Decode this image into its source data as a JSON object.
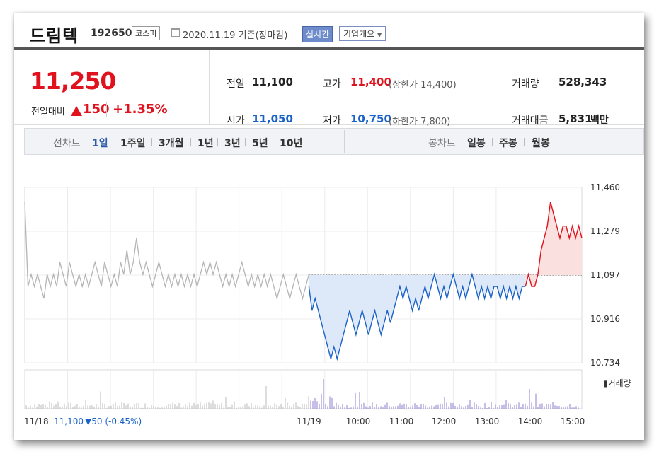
{
  "header": {
    "name": "드림텍",
    "code": "192650",
    "market": "코스피",
    "date": "2020.11.19 기준(장마감)",
    "realtime": "실시간",
    "overview": "기업개요"
  },
  "price": {
    "current": "11,250",
    "change_label": "전일대비",
    "change": "150",
    "percent": "+1.35%"
  },
  "stats": {
    "prev_label": "전일",
    "prev": "11,100",
    "high_label": "고가",
    "high": "11,400",
    "upper_limit": "(상한가 14,400)",
    "volume_label": "거래량",
    "volume": "528,343",
    "open_label": "시가",
    "open": "11,050",
    "low_label": "저가",
    "low": "10,750",
    "lower_limit": "(하한가 7,800)",
    "amount_label": "거래대금",
    "amount": "5,831",
    "amount_unit": "백만"
  },
  "tabs": {
    "line_label": "선차트",
    "line_items": [
      "1일",
      "1주일",
      "3개월",
      "1년",
      "3년",
      "5년",
      "10년"
    ],
    "candle_label": "봉차트",
    "candle_items": [
      "일봉",
      "주봉",
      "월봉"
    ]
  },
  "colors": {
    "up": "#e0121d",
    "down": "#1b62c8",
    "prev_line": "#b5b5b5",
    "volume": "#8f7fd0"
  },
  "chart_data": {
    "type": "line",
    "y_ticks": [
      "11,460",
      "11,279",
      "11,097",
      "10,916",
      "10,734"
    ],
    "ylim": [
      10734,
      11460
    ],
    "baseline": 11097,
    "x_ticks": [
      "11/19",
      "10:00",
      "11:00",
      "12:00",
      "13:00",
      "14:00",
      "15:00"
    ],
    "volume_legend": "거래량",
    "footer_date": "11/18",
    "footer_value": "11,100",
    "footer_change": "▼50 (-0.45%)",
    "prev_day_series": [
      11400,
      11050,
      11100,
      11050,
      11100,
      11050,
      11000,
      11100,
      11050,
      11100,
      11050,
      11150,
      11100,
      11050,
      11150,
      11100,
      11050,
      11100,
      11050,
      11100,
      11050,
      11100,
      11150,
      11100,
      11050,
      11150,
      11100,
      11050,
      11100,
      11050,
      11150,
      11100,
      11200,
      11100,
      11150,
      11250,
      11150,
      11100,
      11150,
      11100,
      11050,
      11100,
      11150,
      11100,
      11050,
      11100,
      11050,
      11100,
      11050,
      11100,
      11050,
      11100,
      11050,
      11100,
      11050,
      11100,
      11150,
      11100,
      11150,
      11100,
      11150,
      11100,
      11050,
      11100,
      11050,
      11100,
      11050,
      11100,
      11150,
      11100,
      11050,
      11100,
      11050,
      11100,
      11050,
      11100,
      11050,
      11100,
      11050,
      11000,
      11050,
      11100,
      11050,
      11000,
      11050,
      11100,
      11050,
      11000,
      11050,
      11100
    ],
    "today_series": [
      11050,
      10950,
      11000,
      10950,
      10900,
      10850,
      10800,
      10750,
      10800,
      10750,
      10800,
      10850,
      10900,
      10950,
      10900,
      10850,
      10900,
      10950,
      10900,
      10850,
      10900,
      10950,
      10900,
      10850,
      10900,
      10950,
      10900,
      10950,
      11000,
      11050,
      11000,
      11050,
      11000,
      10950,
      11000,
      10950,
      11000,
      11050,
      11000,
      11050,
      11100,
      11050,
      11000,
      11050,
      11000,
      11050,
      11100,
      11050,
      11000,
      11050,
      11000,
      11050,
      11100,
      11050,
      11000,
      11050,
      11000,
      11050,
      11000,
      11050,
      11050,
      11000,
      11050,
      11000,
      11050,
      11000,
      11050,
      11000,
      11050,
      11050,
      11100,
      11050,
      11050,
      11100,
      11200,
      11250,
      11300,
      11400,
      11350,
      11300,
      11250,
      11300,
      11300,
      11250,
      11300,
      11250,
      11300,
      11250
    ]
  }
}
